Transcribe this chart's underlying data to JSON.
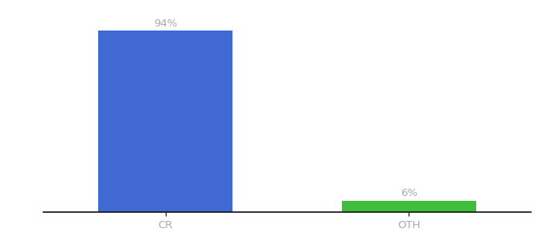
{
  "categories": [
    "CR",
    "OTH"
  ],
  "values": [
    94,
    6
  ],
  "bar_colors": [
    "#4169d4",
    "#3dbf3d"
  ],
  "labels": [
    "94%",
    "6%"
  ],
  "ylim": [
    0,
    100
  ],
  "background_color": "#ffffff",
  "label_fontsize": 9.5,
  "tick_fontsize": 9.5,
  "label_color": "#aaaaaa",
  "tick_color": "#aaaaaa",
  "bar_width": 0.55,
  "xlim": [
    -0.5,
    1.5
  ]
}
